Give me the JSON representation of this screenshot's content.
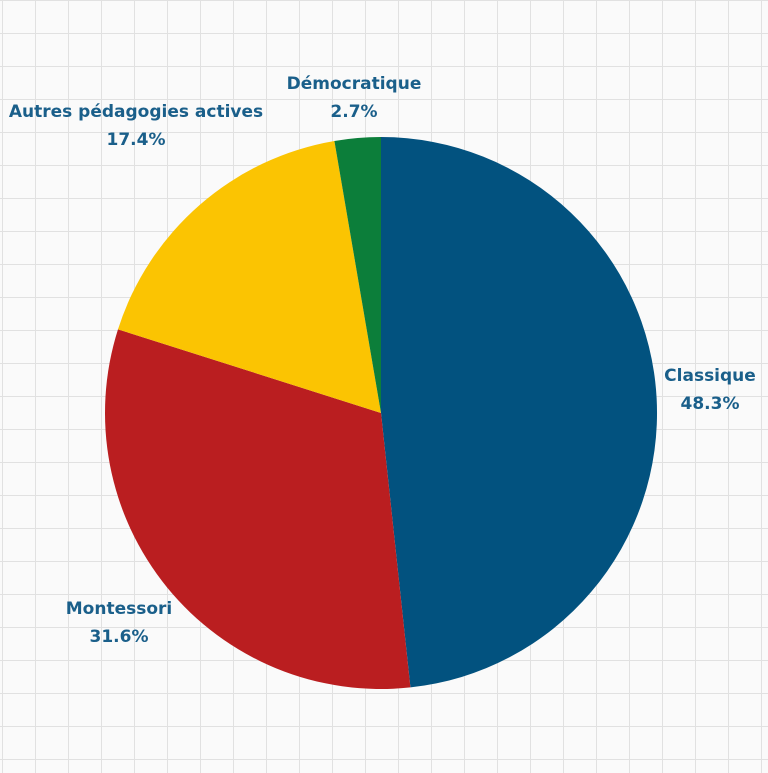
{
  "chart_data": {
    "type": "pie",
    "title": "",
    "slices": [
      {
        "label": "Classique",
        "value": 48.3,
        "value_label": "48.3%",
        "color": "#02527f"
      },
      {
        "label": "Montessori",
        "value": 31.6,
        "value_label": "31.6%",
        "color": "#ba1e20"
      },
      {
        "label": "Autres pédagogies actives",
        "value": 17.4,
        "value_label": "17.4%",
        "color": "#fbc402"
      },
      {
        "label": "Démocratique",
        "value": 2.7,
        "value_label": "2.7%",
        "color": "#0c7e3a"
      }
    ],
    "start_angle": "top",
    "direction": "clockwise",
    "label_color": "#1a5f8a",
    "background": "grid"
  }
}
